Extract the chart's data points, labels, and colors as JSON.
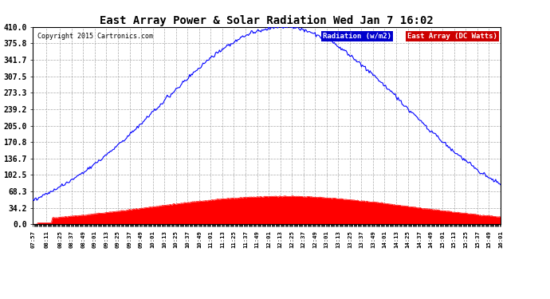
{
  "title": "East Array Power & Solar Radiation Wed Jan 7 16:02",
  "copyright": "Copyright 2015 Cartronics.com",
  "legend_radiation": "Radiation (w/m2)",
  "legend_east_array": "East Array (DC Watts)",
  "y_ticks": [
    0.0,
    34.2,
    68.3,
    102.5,
    136.7,
    170.8,
    205.0,
    239.2,
    273.3,
    307.5,
    341.7,
    375.8,
    410.0
  ],
  "y_max": 410.0,
  "y_min": 0.0,
  "background_color": "#ffffff",
  "plot_bg_color": "#ffffff",
  "grid_color": "#aaaaaa",
  "title_color": "#000000",
  "radiation_color": "#0000ff",
  "east_array_color": "#ff0000",
  "legend_rad_bg": "#0000cc",
  "legend_east_bg": "#cc0000",
  "x_labels_sparse": [
    "07:57",
    "08:11",
    "08:25",
    "08:37",
    "08:49",
    "09:01",
    "09:13",
    "09:25",
    "09:37",
    "09:49",
    "10:01",
    "10:13",
    "10:25",
    "10:37",
    "10:49",
    "11:01",
    "11:13",
    "11:25",
    "11:37",
    "11:49",
    "12:01",
    "12:13",
    "12:25",
    "12:37",
    "12:49",
    "13:01",
    "13:13",
    "13:25",
    "13:37",
    "13:49",
    "14:01",
    "14:13",
    "14:25",
    "14:37",
    "14:49",
    "15:01",
    "15:13",
    "15:25",
    "15:37",
    "15:49",
    "16:01"
  ]
}
